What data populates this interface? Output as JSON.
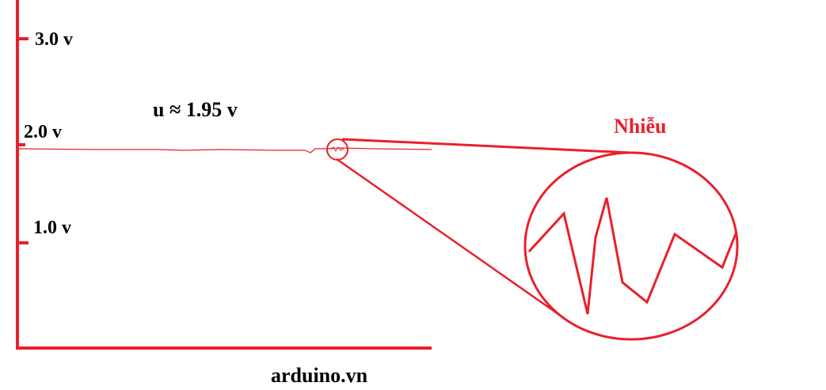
{
  "colors": {
    "accent": "#e8202a",
    "text": "#000000",
    "background": "#ffffff"
  },
  "axis": {
    "ticks": [
      {
        "label": "3.0 v",
        "value": 3.0
      },
      {
        "label": "2.0 v",
        "value": 2.0
      },
      {
        "label": "1.0 v",
        "value": 1.0
      }
    ]
  },
  "signal": {
    "label": "u ≈ 1.95 v",
    "value": 1.95
  },
  "zoom": {
    "label": "Nhiễu"
  },
  "footer": {
    "credit": "arduino.vn"
  }
}
